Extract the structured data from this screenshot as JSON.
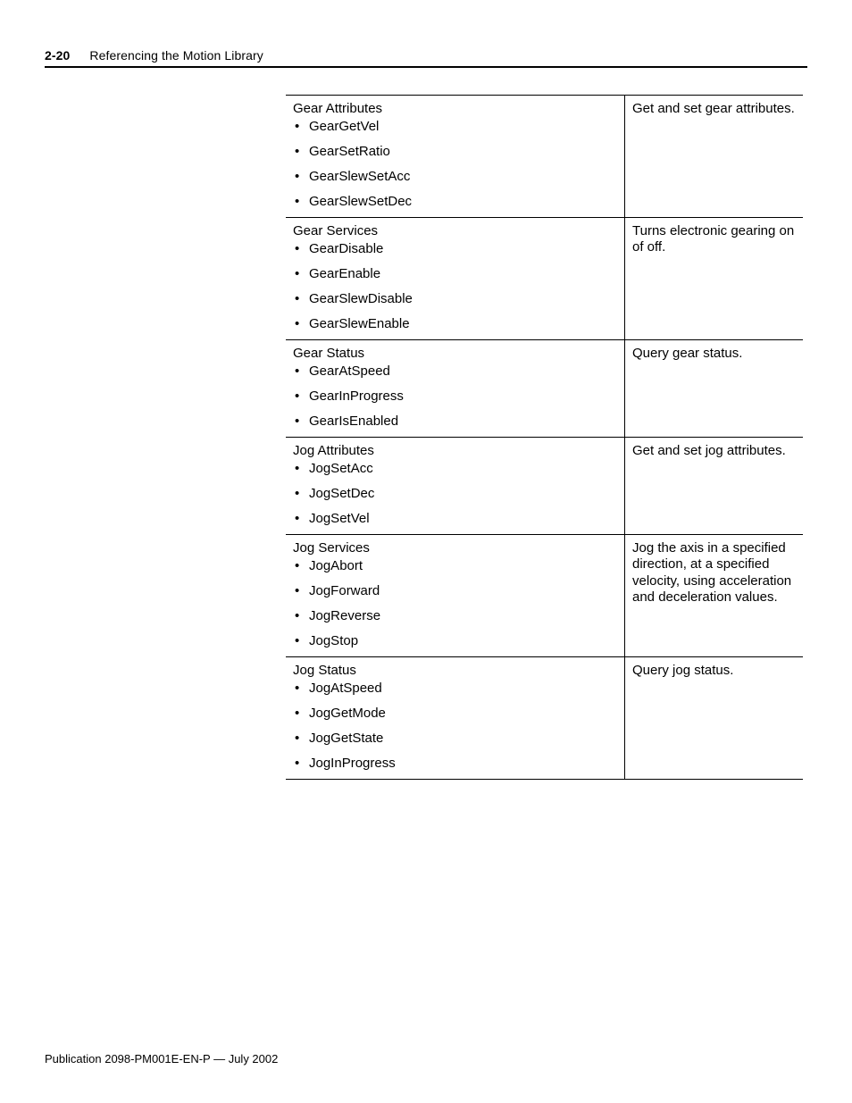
{
  "header": {
    "page_number": "2-20",
    "section_title": "Referencing the Motion Library"
  },
  "footer": {
    "publication": "Publication 2098-PM001E-EN-P — July 2002"
  },
  "table": {
    "rows": [
      {
        "heading": "Gear Attributes",
        "desc": "Get and set gear attributes.",
        "items": [
          "GearGetVel",
          "GearSetRatio",
          "GearSlewSetAcc",
          "GearSlewSetDec"
        ]
      },
      {
        "heading": "Gear Services",
        "desc": "Turns electronic gearing on of off.",
        "items": [
          "GearDisable",
          "GearEnable",
          "GearSlewDisable",
          "GearSlewEnable"
        ]
      },
      {
        "heading": "Gear Status",
        "desc": "Query gear status.",
        "items": [
          "GearAtSpeed",
          "GearInProgress",
          "GearIsEnabled"
        ]
      },
      {
        "heading": "Jog Attributes",
        "desc": "Get and set jog attributes.",
        "items": [
          "JogSetAcc",
          "JogSetDec",
          "JogSetVel"
        ]
      },
      {
        "heading": "Jog Services",
        "desc": "Jog the axis in a specified direction, at a specified velocity, using acceleration and deceleration values.",
        "items": [
          "JogAbort",
          "JogForward",
          "JogReverse",
          "JogStop"
        ]
      },
      {
        "heading": "Jog Status",
        "desc": "Query jog status.",
        "items": [
          "JogAtSpeed",
          "JogGetMode",
          "JogGetState",
          "JogInProgress"
        ]
      }
    ]
  }
}
